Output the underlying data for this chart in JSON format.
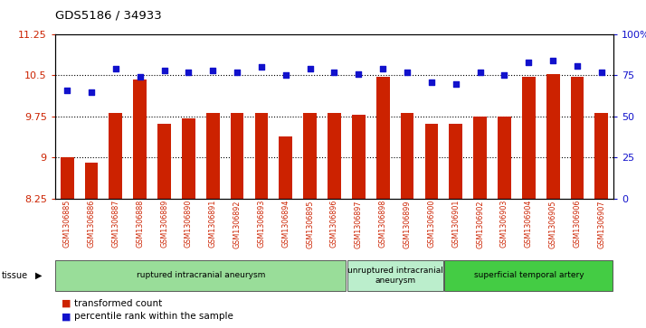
{
  "title": "GDS5186 / 34933",
  "samples": [
    "GSM1306885",
    "GSM1306886",
    "GSM1306887",
    "GSM1306888",
    "GSM1306889",
    "GSM1306890",
    "GSM1306891",
    "GSM1306892",
    "GSM1306893",
    "GSM1306894",
    "GSM1306895",
    "GSM1306896",
    "GSM1306897",
    "GSM1306898",
    "GSM1306899",
    "GSM1306900",
    "GSM1306901",
    "GSM1306902",
    "GSM1306903",
    "GSM1306904",
    "GSM1306905",
    "GSM1306906",
    "GSM1306907"
  ],
  "bar_values": [
    9.0,
    8.9,
    9.82,
    10.43,
    9.62,
    9.72,
    9.82,
    9.82,
    9.82,
    9.38,
    9.82,
    9.82,
    9.78,
    10.48,
    9.82,
    9.62,
    9.62,
    9.75,
    9.75,
    10.48,
    10.52,
    10.48,
    9.82
  ],
  "dot_values": [
    66,
    65,
    79,
    74,
    78,
    77,
    78,
    77,
    80,
    75,
    79,
    77,
    76,
    79,
    77,
    71,
    70,
    77,
    75,
    83,
    84,
    81,
    77
  ],
  "bar_color": "#cc2200",
  "dot_color": "#1111cc",
  "plot_bg": "#ffffff",
  "tick_bg": "#cccccc",
  "ylim_left": [
    8.25,
    11.25
  ],
  "ylim_right": [
    0,
    100
  ],
  "yticks_left": [
    8.25,
    9.0,
    9.75,
    10.5,
    11.25
  ],
  "yticks_right": [
    0,
    25,
    50,
    75,
    100
  ],
  "ytick_labels_left": [
    "8.25",
    "9",
    "9.75",
    "10.5",
    "11.25"
  ],
  "ytick_labels_right": [
    "0",
    "25",
    "50",
    "75",
    "100%"
  ],
  "hlines": [
    9.0,
    9.75,
    10.5
  ],
  "groups": [
    {
      "label": "ruptured intracranial aneurysm",
      "start": 0,
      "end": 12,
      "color": "#99dd99"
    },
    {
      "label": "unruptured intracranial\naneurysm",
      "start": 12,
      "end": 16,
      "color": "#bbeecc"
    },
    {
      "label": "superficial temporal artery",
      "start": 16,
      "end": 23,
      "color": "#44cc44"
    }
  ],
  "legend_items": [
    {
      "label": "transformed count",
      "color": "#cc2200"
    },
    {
      "label": "percentile rank within the sample",
      "color": "#1111cc"
    }
  ]
}
